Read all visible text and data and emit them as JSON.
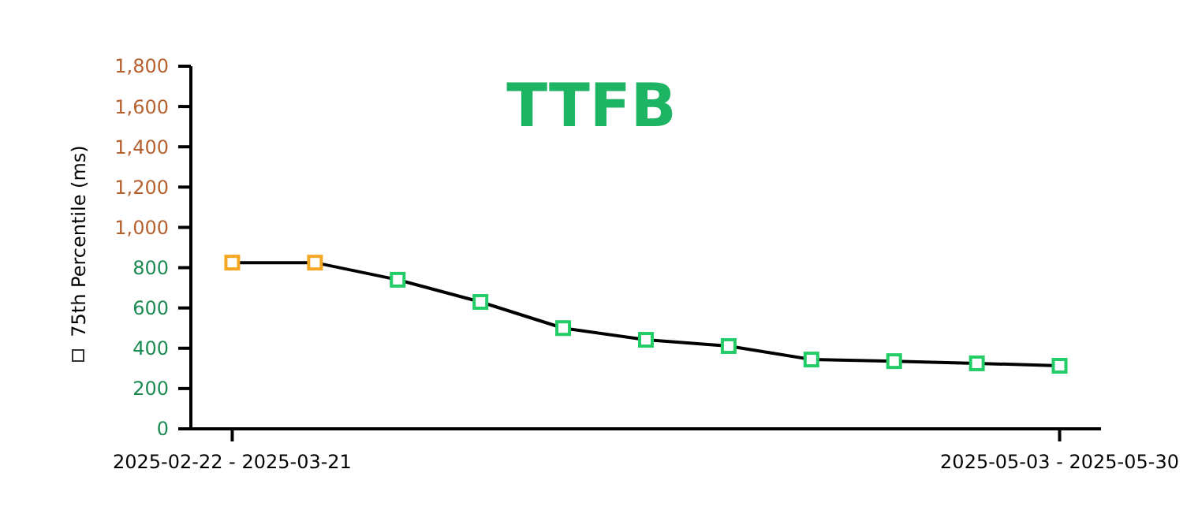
{
  "chart_data": {
    "type": "line",
    "title": "TTFB",
    "ylabel": "75th Percentile (ms)",
    "categories": [
      "2025-02-22 - 2025-03-21",
      null,
      null,
      null,
      null,
      null,
      null,
      null,
      null,
      null,
      "2025-05-03 - 2025-05-30"
    ],
    "series": [
      {
        "color": "#000000",
        "colors": [
          "#f5a623",
          "#f5a623",
          "#22cc66",
          "#22cc66",
          "#22cc66",
          "#22cc66",
          "#22cc66",
          "#22cc66",
          "#22cc66",
          "#22cc66",
          "#22cc66"
        ],
        "values": [
          825,
          825,
          740,
          630,
          500,
          442,
          411,
          344,
          336,
          325,
          313
        ]
      }
    ],
    "ylim": [
      0,
      1800
    ],
    "yticks": [
      {
        "value": 0,
        "label": "0"
      },
      {
        "value": 200,
        "label": "200"
      },
      {
        "value": 400,
        "label": "400"
      },
      {
        "value": 600,
        "label": "600"
      },
      {
        "value": 800,
        "label": "800"
      },
      {
        "value": 1000,
        "label": "1,000"
      },
      {
        "value": 1200,
        "label": "1,200"
      },
      {
        "value": 1400,
        "label": "1,400"
      },
      {
        "value": 1600,
        "label": "1,600"
      },
      {
        "value": 1800,
        "label": "1,800"
      }
    ],
    "grid": false,
    "marker": "square",
    "line_style": "solid"
  }
}
